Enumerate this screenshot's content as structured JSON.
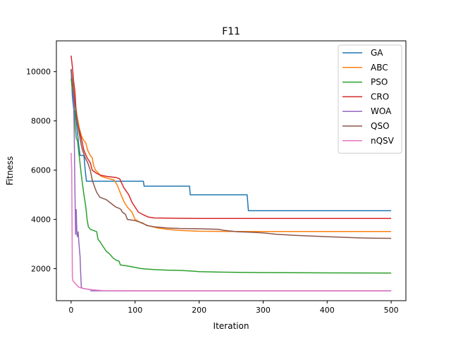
{
  "chart_data": {
    "type": "line",
    "title": "F11",
    "xlabel": "Iteration",
    "ylabel": "Fitness",
    "xlim": [
      -23,
      523
    ],
    "ylim": [
      700,
      11250
    ],
    "xticks": [
      0,
      100,
      200,
      300,
      400,
      500
    ],
    "yticks": [
      2000,
      4000,
      6000,
      8000,
      10000
    ],
    "grid": false,
    "legend": "top-right",
    "series": [
      {
        "name": "GA",
        "color": "#1f77b4",
        "points": [
          [
            0,
            10100
          ],
          [
            2,
            9000
          ],
          [
            4,
            8500
          ],
          [
            6,
            8400
          ],
          [
            8,
            8000
          ],
          [
            10,
            7500
          ],
          [
            12,
            7000
          ],
          [
            14,
            6600
          ],
          [
            20,
            6600
          ],
          [
            22,
            6000
          ],
          [
            24,
            5550
          ],
          [
            40,
            5550
          ],
          [
            113,
            5550
          ],
          [
            114,
            5350
          ],
          [
            185,
            5350
          ],
          [
            186,
            5000
          ],
          [
            275,
            5000
          ],
          [
            277,
            4350
          ],
          [
            500,
            4350
          ]
        ]
      },
      {
        "name": "ABC",
        "color": "#ff7f0e",
        "points": [
          [
            0,
            9700
          ],
          [
            3,
            9500
          ],
          [
            5,
            9000
          ],
          [
            7,
            8600
          ],
          [
            10,
            8100
          ],
          [
            13,
            7700
          ],
          [
            16,
            7400
          ],
          [
            20,
            7200
          ],
          [
            23,
            7100
          ],
          [
            26,
            6800
          ],
          [
            30,
            6600
          ],
          [
            33,
            6500
          ],
          [
            35,
            6200
          ],
          [
            38,
            6000
          ],
          [
            42,
            5900
          ],
          [
            47,
            5750
          ],
          [
            53,
            5700
          ],
          [
            60,
            5650
          ],
          [
            67,
            5600
          ],
          [
            72,
            5400
          ],
          [
            78,
            5000
          ],
          [
            83,
            4700
          ],
          [
            88,
            4500
          ],
          [
            95,
            4300
          ],
          [
            100,
            4000
          ],
          [
            110,
            3850
          ],
          [
            120,
            3750
          ],
          [
            135,
            3650
          ],
          [
            150,
            3600
          ],
          [
            170,
            3550
          ],
          [
            200,
            3520
          ],
          [
            250,
            3510
          ],
          [
            300,
            3510
          ],
          [
            400,
            3510
          ],
          [
            500,
            3510
          ]
        ]
      },
      {
        "name": "PSO",
        "color": "#2ca02c",
        "points": [
          [
            0,
            9700
          ],
          [
            2,
            9300
          ],
          [
            4,
            9000
          ],
          [
            6,
            8000
          ],
          [
            8,
            7300
          ],
          [
            10,
            7200
          ],
          [
            13,
            6500
          ],
          [
            16,
            5800
          ],
          [
            18,
            5400
          ],
          [
            20,
            5000
          ],
          [
            23,
            4500
          ],
          [
            25,
            4000
          ],
          [
            27,
            3700
          ],
          [
            30,
            3600
          ],
          [
            35,
            3550
          ],
          [
            40,
            3500
          ],
          [
            42,
            3200
          ],
          [
            45,
            3100
          ],
          [
            50,
            2900
          ],
          [
            55,
            2700
          ],
          [
            60,
            2600
          ],
          [
            65,
            2450
          ],
          [
            70,
            2350
          ],
          [
            75,
            2300
          ],
          [
            77,
            2150
          ],
          [
            85,
            2120
          ],
          [
            100,
            2050
          ],
          [
            110,
            2000
          ],
          [
            130,
            1960
          ],
          [
            150,
            1940
          ],
          [
            170,
            1930
          ],
          [
            190,
            1900
          ],
          [
            200,
            1880
          ],
          [
            230,
            1860
          ],
          [
            260,
            1850
          ],
          [
            300,
            1840
          ],
          [
            400,
            1830
          ],
          [
            500,
            1820
          ]
        ]
      },
      {
        "name": "CRO",
        "color": "#d62728",
        "points": [
          [
            0,
            10650
          ],
          [
            2,
            10200
          ],
          [
            4,
            9600
          ],
          [
            6,
            9200
          ],
          [
            8,
            8300
          ],
          [
            10,
            7900
          ],
          [
            13,
            7600
          ],
          [
            16,
            7300
          ],
          [
            20,
            6800
          ],
          [
            25,
            6500
          ],
          [
            30,
            6300
          ],
          [
            33,
            6000
          ],
          [
            38,
            5900
          ],
          [
            45,
            5800
          ],
          [
            55,
            5750
          ],
          [
            70,
            5700
          ],
          [
            76,
            5650
          ],
          [
            82,
            5300
          ],
          [
            90,
            5000
          ],
          [
            95,
            4700
          ],
          [
            100,
            4500
          ],
          [
            105,
            4300
          ],
          [
            112,
            4200
          ],
          [
            120,
            4100
          ],
          [
            130,
            4060
          ],
          [
            150,
            4050
          ],
          [
            200,
            4040
          ],
          [
            300,
            4040
          ],
          [
            400,
            4040
          ],
          [
            500,
            4040
          ]
        ]
      },
      {
        "name": "WOA",
        "color": "#9467bd",
        "points": [
          [
            0,
            10000
          ],
          [
            2,
            9600
          ],
          [
            4,
            8800
          ],
          [
            5,
            7400
          ],
          [
            6,
            5200
          ],
          [
            6.5,
            4300
          ],
          [
            7,
            3400
          ],
          [
            8,
            4400
          ],
          [
            9,
            3400
          ],
          [
            10,
            3300
          ],
          [
            11,
            3500
          ],
          [
            12,
            3100
          ],
          [
            13,
            2800
          ],
          [
            14,
            2500
          ],
          [
            15,
            1800
          ],
          [
            16,
            1250
          ],
          [
            18,
            1200
          ],
          [
            30,
            1150
          ],
          [
            31,
            1100
          ],
          [
            500,
            1100
          ]
        ]
      },
      {
        "name": "QSO",
        "color": "#8c564b",
        "points": [
          [
            0,
            10100
          ],
          [
            2,
            9600
          ],
          [
            4,
            9100
          ],
          [
            6,
            8700
          ],
          [
            8,
            8300
          ],
          [
            10,
            7900
          ],
          [
            12,
            7600
          ],
          [
            14,
            7300
          ],
          [
            16,
            7000
          ],
          [
            18,
            6800
          ],
          [
            22,
            6500
          ],
          [
            26,
            6300
          ],
          [
            30,
            6000
          ],
          [
            33,
            5600
          ],
          [
            37,
            5300
          ],
          [
            40,
            5100
          ],
          [
            45,
            4900
          ],
          [
            55,
            4800
          ],
          [
            60,
            4700
          ],
          [
            65,
            4600
          ],
          [
            70,
            4500
          ],
          [
            75,
            4450
          ],
          [
            78,
            4400
          ],
          [
            80,
            4300
          ],
          [
            85,
            4200
          ],
          [
            88,
            4000
          ],
          [
            100,
            3950
          ],
          [
            112,
            3850
          ],
          [
            118,
            3750
          ],
          [
            130,
            3700
          ],
          [
            150,
            3650
          ],
          [
            170,
            3630
          ],
          [
            200,
            3620
          ],
          [
            230,
            3600
          ],
          [
            240,
            3550
          ],
          [
            260,
            3500
          ],
          [
            280,
            3480
          ],
          [
            300,
            3450
          ],
          [
            320,
            3400
          ],
          [
            350,
            3350
          ],
          [
            400,
            3300
          ],
          [
            440,
            3260
          ],
          [
            470,
            3240
          ],
          [
            500,
            3230
          ]
        ]
      },
      {
        "name": "nQSV",
        "color": "#e377c2",
        "points": [
          [
            0,
            6700
          ],
          [
            1,
            6000
          ],
          [
            2,
            1650
          ],
          [
            3,
            1500
          ],
          [
            5,
            1450
          ],
          [
            8,
            1350
          ],
          [
            12,
            1250
          ],
          [
            18,
            1200
          ],
          [
            30,
            1150
          ],
          [
            50,
            1110
          ],
          [
            100,
            1100
          ],
          [
            500,
            1100
          ]
        ]
      }
    ]
  }
}
